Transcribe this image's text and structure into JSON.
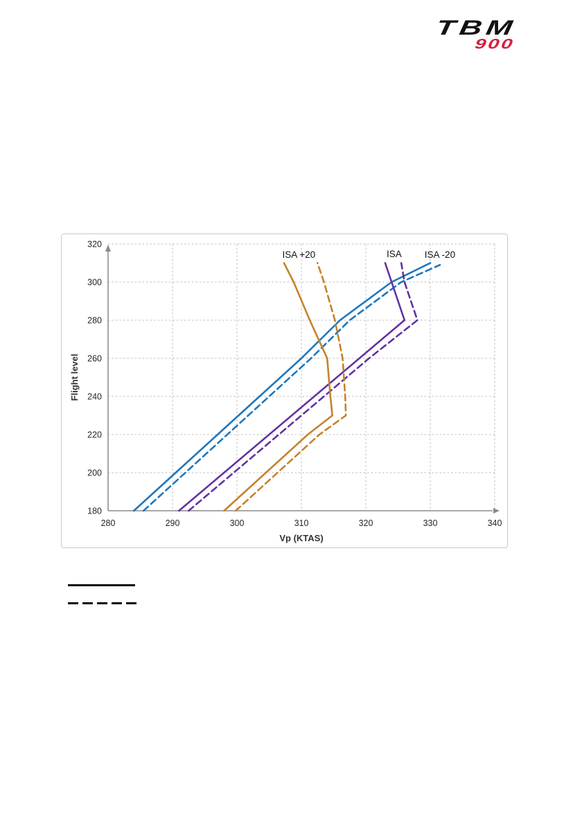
{
  "page": {
    "background": "#ffffff"
  },
  "logo": {
    "brand": "TBM",
    "model": "900",
    "brand_color": "#111111",
    "model_color": "#D6203C"
  },
  "chart_data": {
    "type": "line",
    "title": "",
    "xlabel": "Vp (KTAS)",
    "ylabel": "Flight level",
    "xlim": [
      280,
      340
    ],
    "ylim": [
      180,
      320
    ],
    "x_ticks": [
      280,
      290,
      300,
      310,
      320,
      330,
      340
    ],
    "y_ticks": [
      180,
      200,
      220,
      240,
      260,
      280,
      300,
      320
    ],
    "grid": "dashed",
    "legend_position": "below-left",
    "series": [
      {
        "name": "ISA -20 solid",
        "color": "#2076BC",
        "style": "solid",
        "points": [
          [
            284,
            180
          ],
          [
            290.5,
            200
          ],
          [
            297,
            220
          ],
          [
            303.5,
            240
          ],
          [
            310,
            260
          ],
          [
            316,
            280
          ],
          [
            324,
            300
          ],
          [
            330,
            310
          ]
        ]
      },
      {
        "name": "ISA -20 dashed",
        "color": "#2076BC",
        "style": "dashed",
        "points": [
          [
            285.5,
            180
          ],
          [
            292,
            200
          ],
          [
            298.5,
            220
          ],
          [
            305,
            240
          ],
          [
            311.5,
            260
          ],
          [
            317.5,
            280
          ],
          [
            325.5,
            300
          ],
          [
            331.5,
            309
          ]
        ]
      },
      {
        "name": "ISA solid",
        "color": "#6232A0",
        "style": "solid",
        "points": [
          [
            291,
            180
          ],
          [
            298,
            200
          ],
          [
            305,
            220
          ],
          [
            312,
            240
          ],
          [
            319,
            260
          ],
          [
            326,
            280
          ],
          [
            324,
            300
          ],
          [
            323,
            310
          ]
        ]
      },
      {
        "name": "ISA dashed",
        "color": "#6232A0",
        "style": "dashed",
        "points": [
          [
            292.5,
            180
          ],
          [
            299.5,
            200
          ],
          [
            306.5,
            220
          ],
          [
            313.5,
            240
          ],
          [
            320.5,
            260
          ],
          [
            328,
            280
          ],
          [
            326,
            300
          ],
          [
            325.5,
            310
          ]
        ]
      },
      {
        "name": "ISA +20 solid",
        "color": "#C4832D",
        "style": "solid",
        "points": [
          [
            298,
            180
          ],
          [
            304.5,
            200
          ],
          [
            311,
            220
          ],
          [
            314.8,
            230
          ],
          [
            314.5,
            240
          ],
          [
            314,
            260
          ],
          [
            311.3,
            280
          ],
          [
            308.8,
            300
          ],
          [
            307.3,
            310
          ]
        ]
      },
      {
        "name": "ISA +20 dashed",
        "color": "#C4832D",
        "style": "dashed",
        "points": [
          [
            299.8,
            180
          ],
          [
            306.3,
            200
          ],
          [
            312.8,
            220
          ],
          [
            316.9,
            230
          ],
          [
            316.8,
            240
          ],
          [
            316.4,
            260
          ],
          [
            315.2,
            280
          ],
          [
            313.5,
            300
          ],
          [
            312.5,
            310
          ]
        ]
      }
    ],
    "annotations": [
      {
        "text": "ISA +20",
        "x": 309.6,
        "y": 314.2
      },
      {
        "text": "ISA",
        "x": 324.4,
        "y": 314.6
      },
      {
        "text": "ISA -20",
        "x": 331.5,
        "y": 314.2
      }
    ]
  },
  "legend": {
    "entries": [
      {
        "line_style": "solid",
        "label": ""
      },
      {
        "line_style": "dashed",
        "label": ""
      }
    ]
  }
}
